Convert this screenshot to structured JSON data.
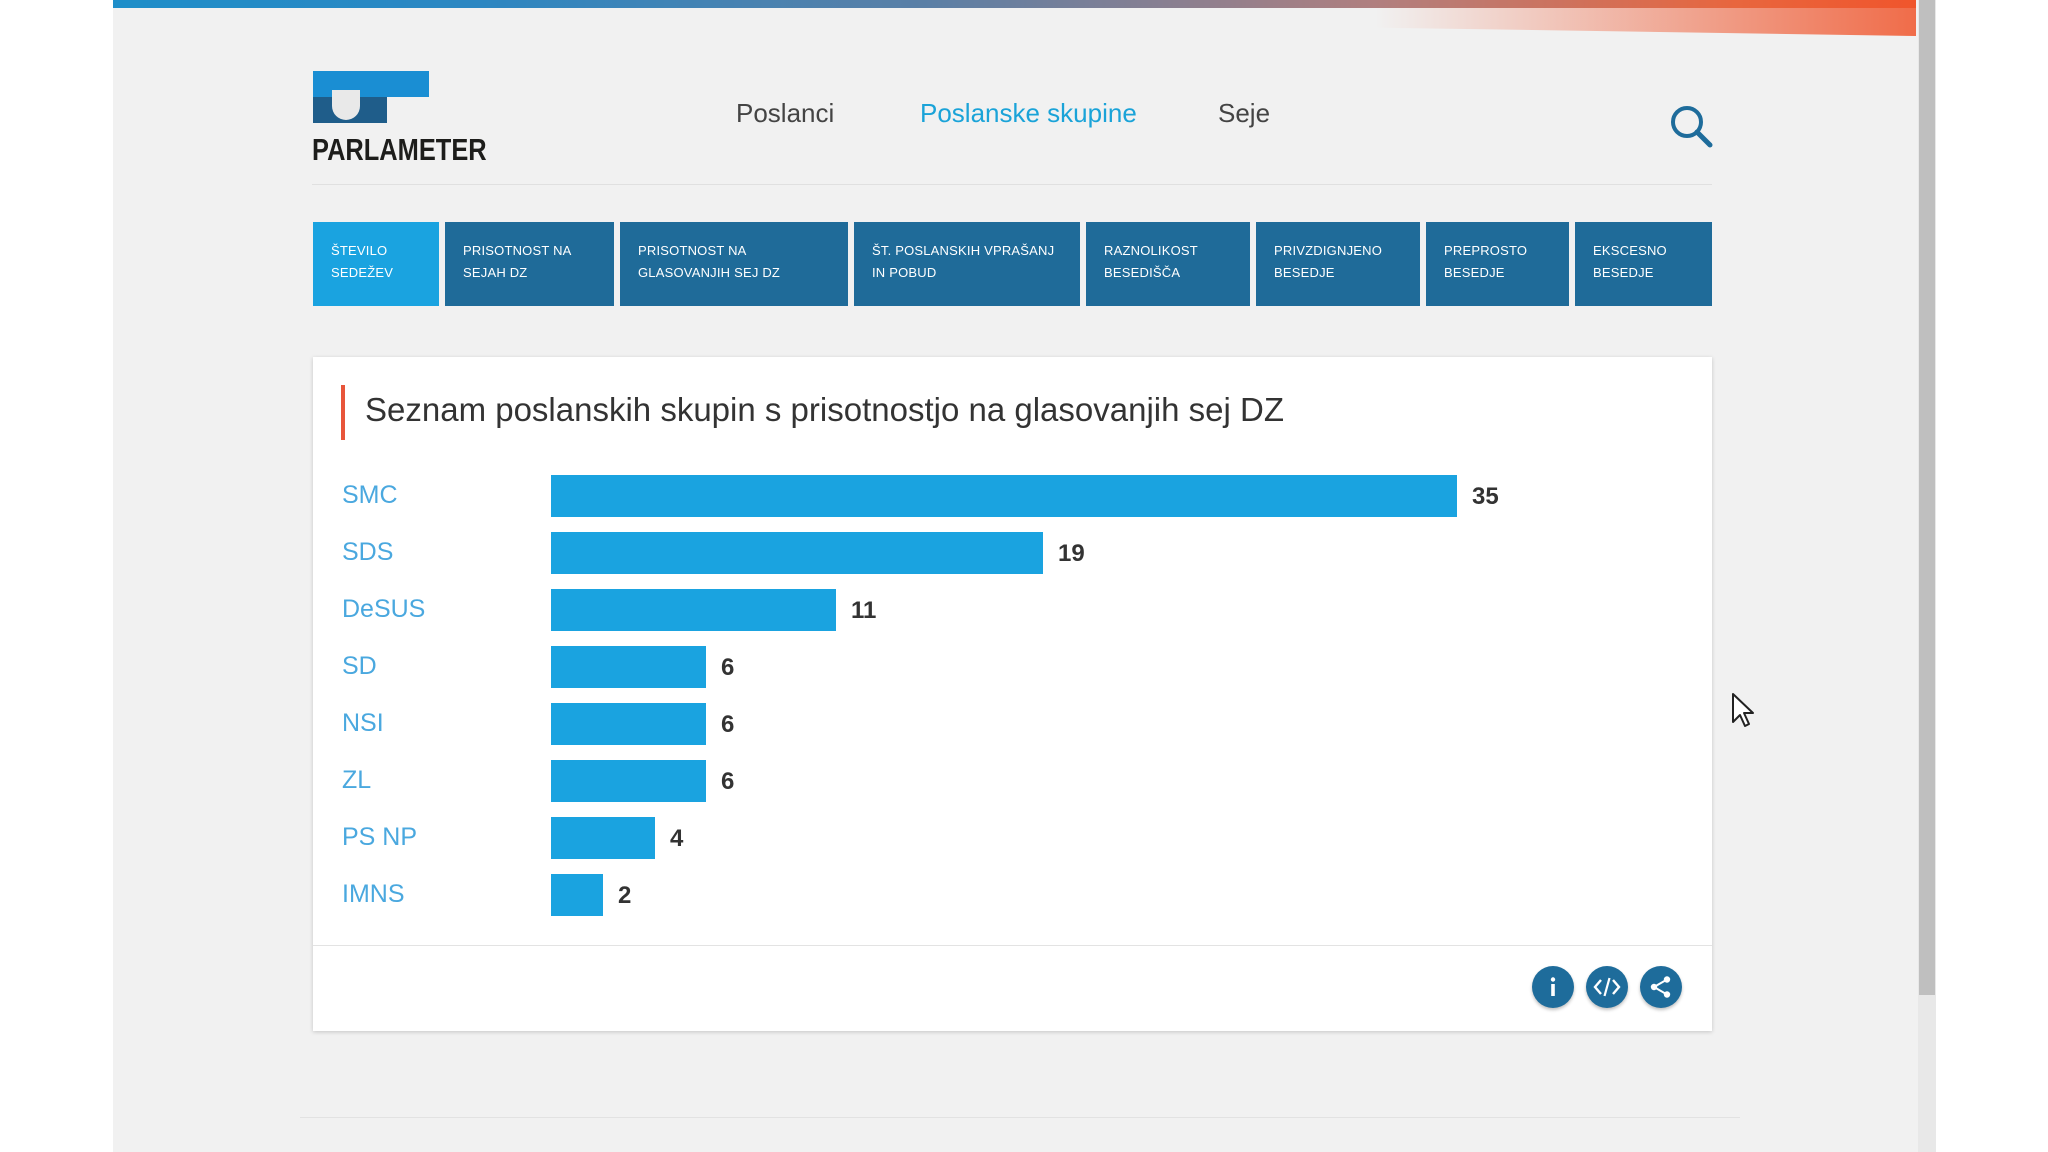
{
  "brand": {
    "name": "PARLAMETER",
    "accent": "#1a8ed3",
    "dark": "#1f5d8a"
  },
  "nav": {
    "items": [
      {
        "label": "Poslanci",
        "active": false
      },
      {
        "label": "Poslanske skupine",
        "active": true
      },
      {
        "label": "Seje",
        "active": false
      }
    ],
    "search_icon": "search-icon"
  },
  "tabs": [
    {
      "label": "ŠTEVILO SEDEŽEV",
      "active": true
    },
    {
      "label": "PRISOTNOST NA SEJAH DZ",
      "active": false
    },
    {
      "label": "PRISOTNOST NA GLASOVANJIH SEJ DZ",
      "active": false
    },
    {
      "label": "ŠT. POSLANSKIH VPRAŠANJ IN POBUD",
      "active": false
    },
    {
      "label": "RAZNOLIKOST BESEDIŠČA",
      "active": false
    },
    {
      "label": "PRIVZDIGNJENO BESEDJE",
      "active": false
    },
    {
      "label": "PREPROSTO BESEDJE",
      "active": false
    },
    {
      "label": "EKSCESNO BESEDJE",
      "active": false
    }
  ],
  "card": {
    "title": "Seznam poslanskih skupin s prisotnostjo na glasovanjih sej DZ",
    "buttons": [
      {
        "icon": "info-icon"
      },
      {
        "icon": "embed-code-icon"
      },
      {
        "icon": "share-icon"
      }
    ]
  },
  "colors": {
    "bar": "#1aa3e0",
    "label": "#4aa8df",
    "tab": "#1f6b99",
    "tab_active": "#1aa3e0",
    "title_accent": "#e8553a"
  },
  "chart_data": {
    "type": "bar",
    "orientation": "horizontal",
    "categories": [
      "SMC",
      "SDS",
      "DeSUS",
      "SD",
      "NSI",
      "ZL",
      "PS NP",
      "IMNS"
    ],
    "values": [
      35,
      19,
      11,
      6,
      6,
      6,
      4,
      2
    ],
    "title": "Seznam poslanskih skupin s prisotnostjo na glasovanjih sej DZ",
    "xlabel": "",
    "ylabel": "",
    "xlim": [
      0,
      35
    ],
    "grid": false,
    "legend": "none",
    "data_labels": true
  }
}
